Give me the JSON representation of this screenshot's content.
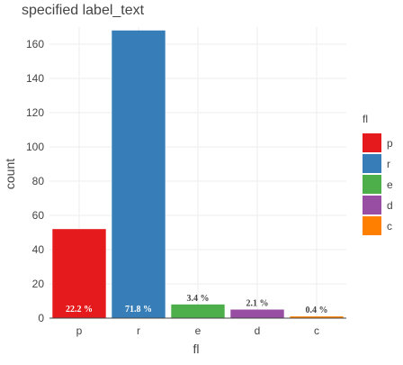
{
  "chart_data": {
    "type": "bar",
    "title": "specified label_text",
    "xlabel": "fl",
    "ylabel": "count",
    "categories": [
      "p",
      "r",
      "e",
      "d",
      "c"
    ],
    "values": [
      52,
      168,
      8,
      5,
      1
    ],
    "value_labels": [
      "22.2 %",
      "71.8 %",
      "3.4 %",
      "2.1 %",
      "0.4 %"
    ],
    "colors": [
      "#e41a1c",
      "#377eb8",
      "#4daf4a",
      "#984ea3",
      "#ff7f00"
    ],
    "ylim": [
      0,
      170
    ],
    "yticks": [
      0,
      20,
      40,
      60,
      80,
      100,
      120,
      140,
      160
    ],
    "grid": true,
    "legend": {
      "title": "fl",
      "position": "right",
      "entries": [
        "p",
        "r",
        "e",
        "d",
        "c"
      ]
    }
  }
}
